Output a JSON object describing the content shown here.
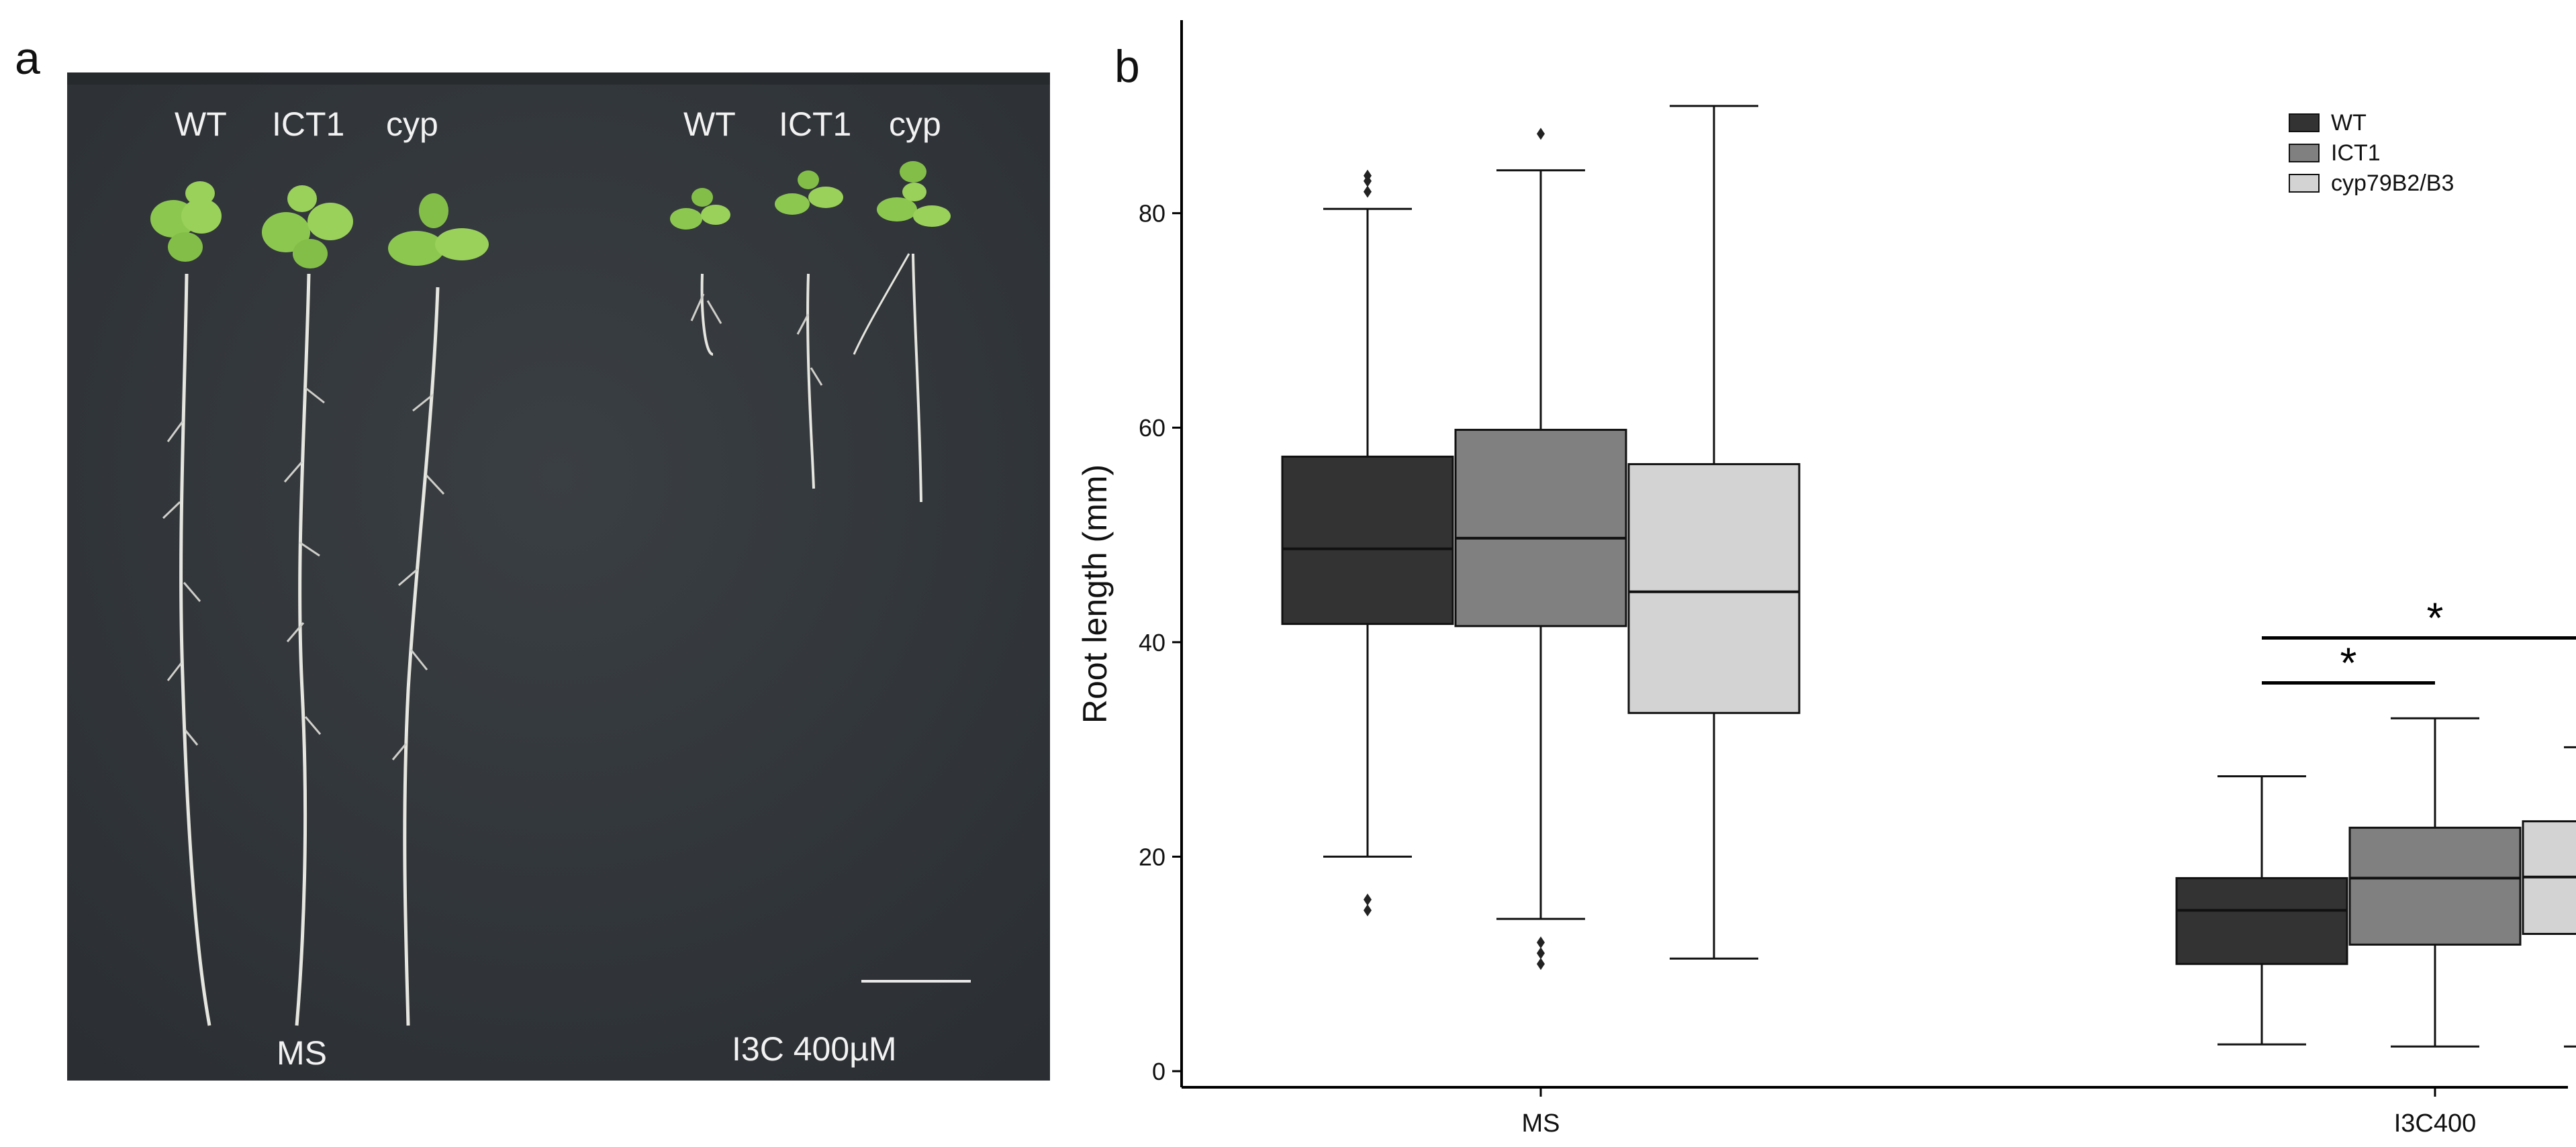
{
  "panel_a": {
    "letter": "a",
    "top_labels": [
      "WT",
      "ICT1",
      "cyp",
      "WT",
      "ICT1",
      "cyp"
    ],
    "condition_labels": [
      "MS",
      "I3C 400µM"
    ],
    "scale_bar_visible": true,
    "background_color": "#31363a",
    "leaf_color": "#8cc84f",
    "root_color": "#e6e6e0"
  },
  "panel_b": {
    "letter": "b"
  },
  "chart_data": {
    "type": "box",
    "ylabel": "Root length (mm)",
    "xlabel": "",
    "categories": [
      "MS",
      "I3C400"
    ],
    "ylim": [
      -1.5,
      98
    ],
    "yticks": [
      0,
      20,
      40,
      60,
      80
    ],
    "grid": false,
    "legend_position": "top-right",
    "series": [
      {
        "name": "WT",
        "color": "#333333",
        "boxes": [
          {
            "category": "MS",
            "min": 20,
            "q1": 41.7,
            "median": 48.7,
            "q3": 57.3,
            "max": 80.4,
            "outliers": [
              83.5,
              83,
              82,
              16,
              15
            ]
          },
          {
            "category": "I3C400",
            "min": 2.5,
            "q1": 10,
            "median": 15,
            "q3": 18,
            "max": 27.5,
            "outliers": []
          }
        ]
      },
      {
        "name": "ICT1",
        "color": "#808080",
        "boxes": [
          {
            "category": "MS",
            "min": 14.2,
            "q1": 41.5,
            "median": 49.7,
            "q3": 59.8,
            "max": 84,
            "outliers": [
              87.4,
              12,
              11,
              10
            ]
          },
          {
            "category": "I3C400",
            "min": 2.3,
            "q1": 11.8,
            "median": 18,
            "q3": 22.7,
            "max": 32.9,
            "outliers": []
          }
        ]
      },
      {
        "name": "cyp79B2/B3",
        "color": "#d3d3d3",
        "boxes": [
          {
            "category": "MS",
            "min": 10.5,
            "q1": 33.4,
            "median": 44.7,
            "q3": 56.6,
            "max": 90,
            "outliers": []
          },
          {
            "category": "I3C400",
            "min": 2.3,
            "q1": 12.8,
            "median": 18.1,
            "q3": 23.3,
            "max": 30.2,
            "outliers": []
          }
        ]
      }
    ],
    "annotations": [
      {
        "text": "*",
        "category": "I3C400",
        "from_series": "WT",
        "to_series": "ICT1",
        "y": 36.2
      },
      {
        "text": "*",
        "category": "I3C400",
        "from_series": "WT",
        "to_series": "cyp79B2/B3",
        "y": 40.4
      }
    ]
  }
}
